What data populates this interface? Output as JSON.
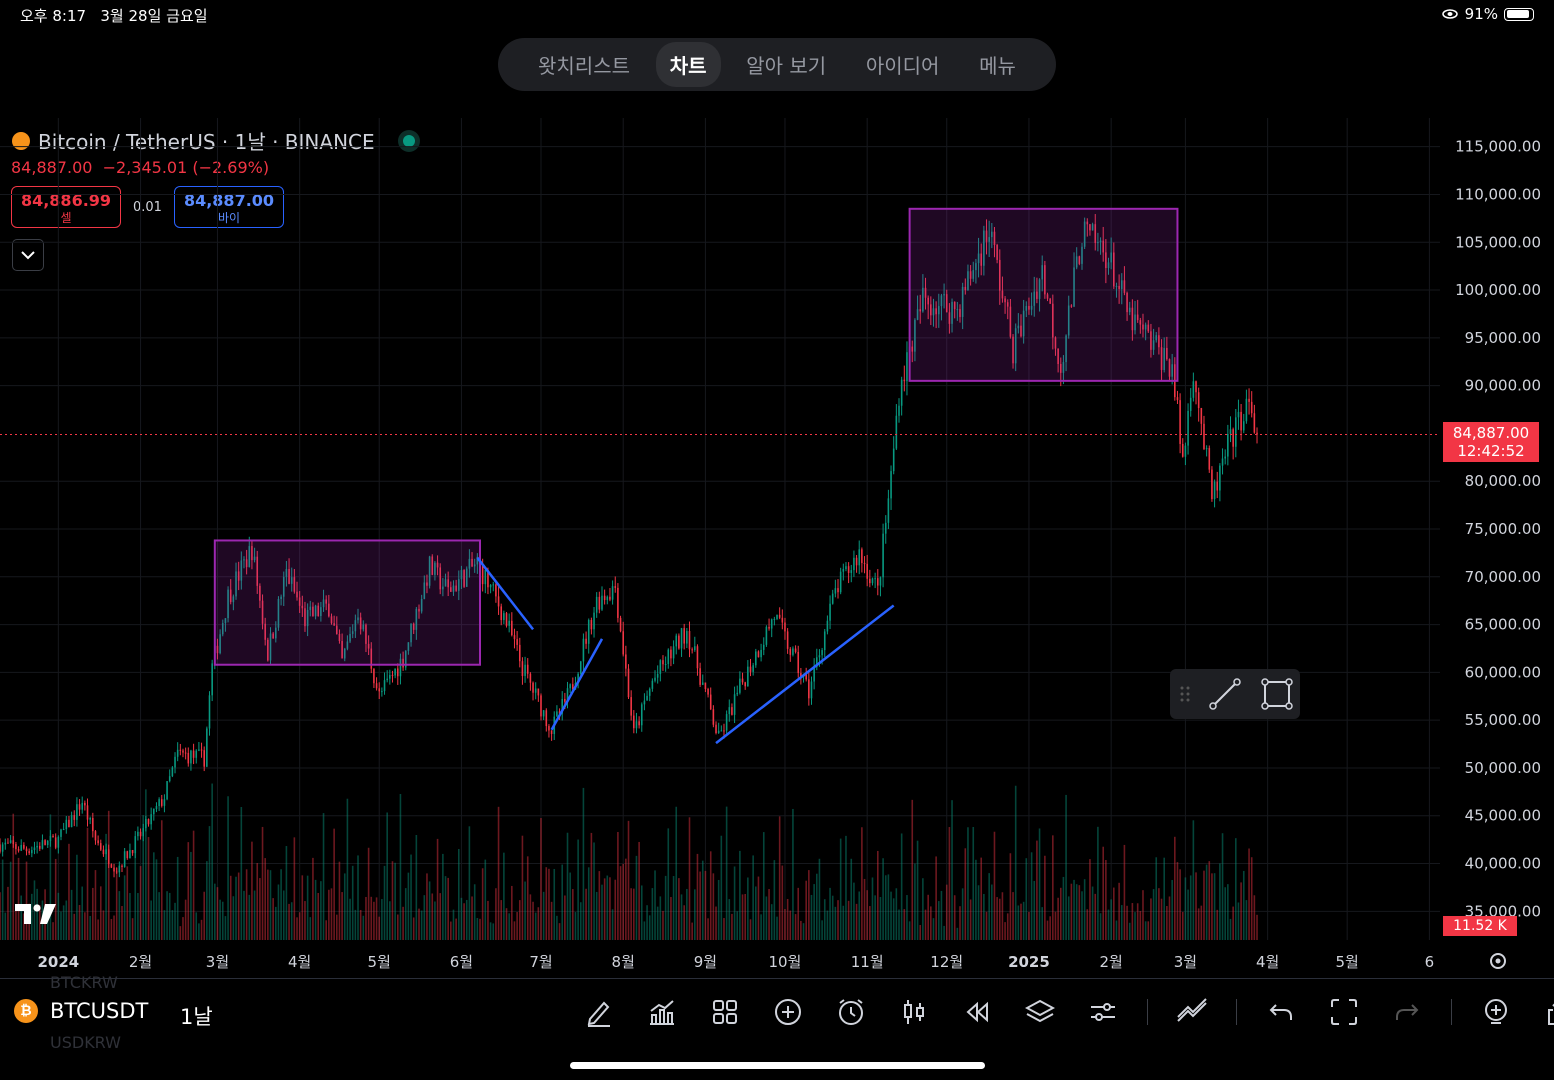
{
  "status_bar": {
    "time": "오후 8:17",
    "date": "3월 28일 금요일",
    "battery": "91%",
    "battery_level": 0.91
  },
  "tabs": [
    {
      "label": "왓치리스트",
      "active": false
    },
    {
      "label": "차트",
      "active": true
    },
    {
      "label": "알아 보기",
      "active": false
    },
    {
      "label": "아이디어",
      "active": false
    },
    {
      "label": "메뉴",
      "active": false
    }
  ],
  "symbol": {
    "title": "Bitcoin / TetherUS · 1날 · BINANCE",
    "last_price": "84,887.00",
    "change": "−2,345.01 (−2.69%)",
    "sell_price": "84,886.99",
    "sell_label": "셀",
    "spread": "0.01",
    "buy_price": "84,887.00",
    "buy_label": "바이"
  },
  "current_price_tag": {
    "price": "84,887.00",
    "countdown": "12:42:52"
  },
  "volume_tag": "11.52 K",
  "bottom_bar": {
    "symbol": "BTCUSDT",
    "interval": "1날",
    "symbol_icon": "₿",
    "ghost_above": "BTCKRW",
    "ghost_below": "USDKRW",
    "tools": [
      "draw-icon",
      "indicators-icon",
      "layouts-icon",
      "add-icon",
      "alert-icon",
      "candle-type-icon",
      "replay-icon",
      "layers-icon",
      "settings-icon",
      "trend-tool-icon",
      "undo-icon",
      "fullscreen-icon",
      "redo-icon",
      "add-symbol-icon",
      "share-icon"
    ]
  },
  "colors": {
    "up": "#089981",
    "down": "#f23645",
    "box": "#9c27b0",
    "trendline": "#2962ff",
    "price_line": "#f23645"
  },
  "chart_data": {
    "type": "candlestick",
    "title": "Bitcoin / TetherUS · 1날 · BINANCE",
    "y_ticks": [
      115000,
      110000,
      105000,
      100000,
      95000,
      90000,
      80000,
      75000,
      70000,
      65000,
      60000,
      55000,
      50000,
      45000,
      40000,
      35000
    ],
    "y_tick_labels": [
      "115,000.00",
      "110,000.00",
      "105,000.00",
      "100,000.00",
      "95,000.00",
      "90,000.00",
      "80,000.00",
      "75,000.00",
      "70,000.00",
      "65,000.00",
      "60,000.00",
      "55,000.00",
      "50,000.00",
      "45,000.00",
      "40,000.00",
      "35,000.00"
    ],
    "ylim": [
      32000,
      118000
    ],
    "x_labels": [
      "2024",
      "2월",
      "3월",
      "4월",
      "5월",
      "6월",
      "7월",
      "8월",
      "9월",
      "10월",
      "11월",
      "12월",
      "2025",
      "2월",
      "3월",
      "4월",
      "5월",
      "6"
    ],
    "x_label_dates": [
      "2024-01-01",
      "2024-02-01",
      "2024-03-01",
      "2024-04-01",
      "2024-05-01",
      "2024-06-01",
      "2024-07-01",
      "2024-08-01",
      "2024-09-01",
      "2024-10-01",
      "2024-11-01",
      "2024-12-01",
      "2025-01-01",
      "2025-02-01",
      "2025-03-01",
      "2025-04-01",
      "2025-05-01",
      "2025-06-01"
    ],
    "x_range": [
      "2023-12-10",
      "2025-06-05"
    ],
    "close_path": [
      [
        "2023-12-10",
        42000
      ],
      [
        "2023-12-20",
        41500
      ],
      [
        "2024-01-01",
        42500
      ],
      [
        "2024-01-10",
        46500
      ],
      [
        "2024-01-15",
        42500
      ],
      [
        "2024-01-23",
        39500
      ],
      [
        "2024-02-01",
        43000
      ],
      [
        "2024-02-10",
        47000
      ],
      [
        "2024-02-15",
        51500
      ],
      [
        "2024-02-25",
        51000
      ],
      [
        "2024-02-28",
        60500
      ],
      [
        "2024-03-05",
        68000
      ],
      [
        "2024-03-14",
        73000
      ],
      [
        "2024-03-20",
        62000
      ],
      [
        "2024-03-27",
        70500
      ],
      [
        "2024-04-03",
        65500
      ],
      [
        "2024-04-12",
        67000
      ],
      [
        "2024-04-17",
        61000
      ],
      [
        "2024-04-23",
        66500
      ],
      [
        "2024-05-01",
        57500
      ],
      [
        "2024-05-10",
        61500
      ],
      [
        "2024-05-20",
        71000
      ],
      [
        "2024-05-27",
        68500
      ],
      [
        "2024-06-07",
        71500
      ],
      [
        "2024-06-17",
        66000
      ],
      [
        "2024-06-24",
        60500
      ],
      [
        "2024-07-05",
        54000
      ],
      [
        "2024-07-12",
        58000
      ],
      [
        "2024-07-22",
        67500
      ],
      [
        "2024-07-29",
        69000
      ],
      [
        "2024-08-05",
        53500
      ],
      [
        "2024-08-12",
        59000
      ],
      [
        "2024-08-25",
        64500
      ],
      [
        "2024-09-06",
        53000
      ],
      [
        "2024-09-15",
        59000
      ],
      [
        "2024-09-27",
        66000
      ],
      [
        "2024-10-10",
        58000
      ],
      [
        "2024-10-20",
        68500
      ],
      [
        "2024-10-29",
        72500
      ],
      [
        "2024-11-05",
        68500
      ],
      [
        "2024-11-10",
        80500
      ],
      [
        "2024-11-13",
        89500
      ],
      [
        "2024-11-22",
        99000
      ],
      [
        "2024-12-05",
        98000
      ],
      [
        "2024-12-17",
        106500
      ],
      [
        "2024-12-26",
        94000
      ],
      [
        "2025-01-06",
        102000
      ],
      [
        "2025-01-13",
        92000
      ],
      [
        "2025-01-21",
        106000
      ],
      [
        "2025-01-30",
        104000
      ],
      [
        "2025-02-08",
        97000
      ],
      [
        "2025-02-24",
        92000
      ],
      [
        "2025-02-28",
        82000
      ],
      [
        "2025-03-04",
        92000
      ],
      [
        "2025-03-11",
        78000
      ],
      [
        "2025-03-17",
        83500
      ],
      [
        "2025-03-24",
        88000
      ],
      [
        "2025-03-28",
        84887
      ]
    ],
    "current_price": 84887,
    "annotations": {
      "boxes": [
        {
          "from": "2024-02-29",
          "to": "2024-06-08",
          "high": 73800,
          "low": 60800
        },
        {
          "from": "2024-11-17",
          "to": "2025-02-26",
          "high": 108500,
          "low": 90500
        }
      ],
      "trendlines": [
        {
          "start": [
            "2024-06-07",
            72000
          ],
          "end": [
            "2024-06-28",
            64500
          ]
        },
        {
          "start": [
            "2024-07-05",
            54000
          ],
          "end": [
            "2024-07-24",
            63500
          ]
        },
        {
          "start": [
            "2024-09-05",
            52600
          ],
          "end": [
            "2024-11-11",
            67000
          ]
        }
      ]
    }
  }
}
